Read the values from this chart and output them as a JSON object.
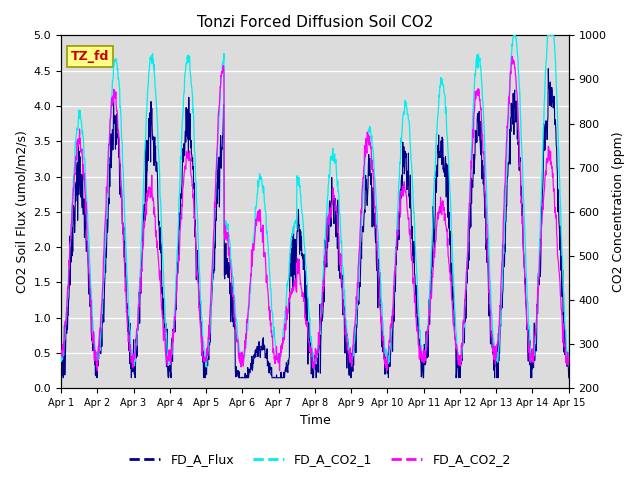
{
  "title": "Tonzi Forced Diffusion Soil CO2",
  "xlabel": "Time",
  "ylabel_left": "CO2 Soil Flux (umol/m2/s)",
  "ylabel_right": "CO2 Concentration (ppm)",
  "ylim_left": [
    0.0,
    5.0
  ],
  "ylim_right": [
    200,
    1000
  ],
  "label_box_text": "TZ_fd",
  "label_box_bg": "#FFFF88",
  "label_box_fg": "#CC0000",
  "color_flux": "#00008B",
  "color_co2_1": "#00EEEE",
  "color_co2_2": "#FF00FF",
  "legend_labels": [
    "FD_A_Flux",
    "FD_A_CO2_1",
    "FD_A_CO2_2"
  ],
  "bg_color": "#DCDCDC",
  "x_tick_labels": [
    "Apr 1",
    "Apr 2",
    "Apr 3",
    "Apr 4",
    "Apr 5",
    "Apr 6",
    "Apr 7",
    "Apr 8",
    "Apr 9",
    "Apr 10",
    "Apr 11",
    "Apr 12",
    "Apr 13",
    "Apr 14",
    "Apr 15"
  ],
  "n_days": 14,
  "pts_per_day": 96,
  "right_ticks": [
    200,
    300,
    400,
    500,
    600,
    700,
    800,
    900,
    1000
  ],
  "left_ticks": [
    0.0,
    0.5,
    1.0,
    1.5,
    2.0,
    2.5,
    3.0,
    3.5,
    4.0,
    4.5,
    5.0
  ]
}
